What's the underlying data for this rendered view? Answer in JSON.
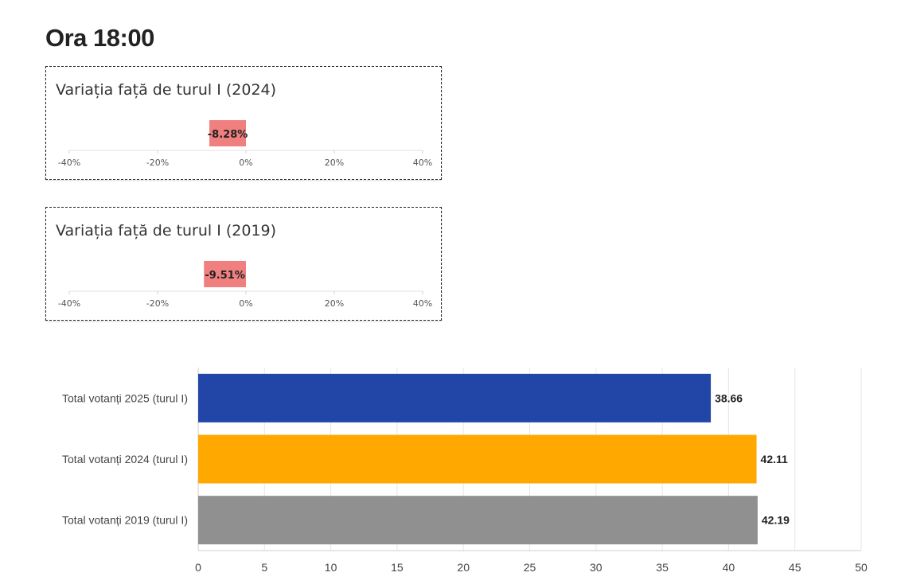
{
  "page": {
    "title": "Ora 18:00"
  },
  "variation_cards": [
    {
      "title": "Variația față de turul I (2024)",
      "value": -8.28,
      "value_label": "-8.28%",
      "color": "#f08080"
    },
    {
      "title": "Variația față de turul I (2019)",
      "value": -9.51,
      "value_label": "-9.51%",
      "color": "#f08080"
    }
  ],
  "chart_data": [
    {
      "type": "bar",
      "orientation": "horizontal",
      "categories": [
        "Variația față de turul I (2024)"
      ],
      "values": [
        -8.28
      ],
      "value_labels": [
        "-8.28%"
      ],
      "xlim": [
        -40,
        40
      ],
      "ticks": [
        -40,
        -20,
        0,
        20,
        40
      ],
      "tick_labels": [
        "-40%",
        "-20%",
        "0%",
        "20%",
        "40%"
      ],
      "colors": [
        "#f08080"
      ]
    },
    {
      "type": "bar",
      "orientation": "horizontal",
      "categories": [
        "Variația față de turul I (2019)"
      ],
      "values": [
        -9.51
      ],
      "value_labels": [
        "-9.51%"
      ],
      "xlim": [
        -40,
        40
      ],
      "ticks": [
        -40,
        -20,
        0,
        20,
        40
      ],
      "tick_labels": [
        "-40%",
        "-20%",
        "0%",
        "20%",
        "40%"
      ],
      "colors": [
        "#f08080"
      ]
    },
    {
      "type": "bar",
      "orientation": "horizontal",
      "categories": [
        "Total votanți 2025 (turul I)",
        "Total votanți 2024 (turul I)",
        "Total votanți 2019 (turul I)"
      ],
      "values": [
        38.66,
        42.11,
        42.19
      ],
      "value_labels": [
        "38.66",
        "42.11",
        "42.19"
      ],
      "colors": [
        "#2146a8",
        "#ffa800",
        "#909090"
      ],
      "xlim": [
        0,
        50
      ],
      "ticks": [
        0,
        5,
        10,
        15,
        20,
        25,
        30,
        35,
        40,
        45,
        50
      ],
      "tick_labels": [
        "0",
        "5",
        "10",
        "15",
        "20",
        "25",
        "30",
        "35",
        "40",
        "45",
        "50"
      ],
      "grid": true
    }
  ]
}
